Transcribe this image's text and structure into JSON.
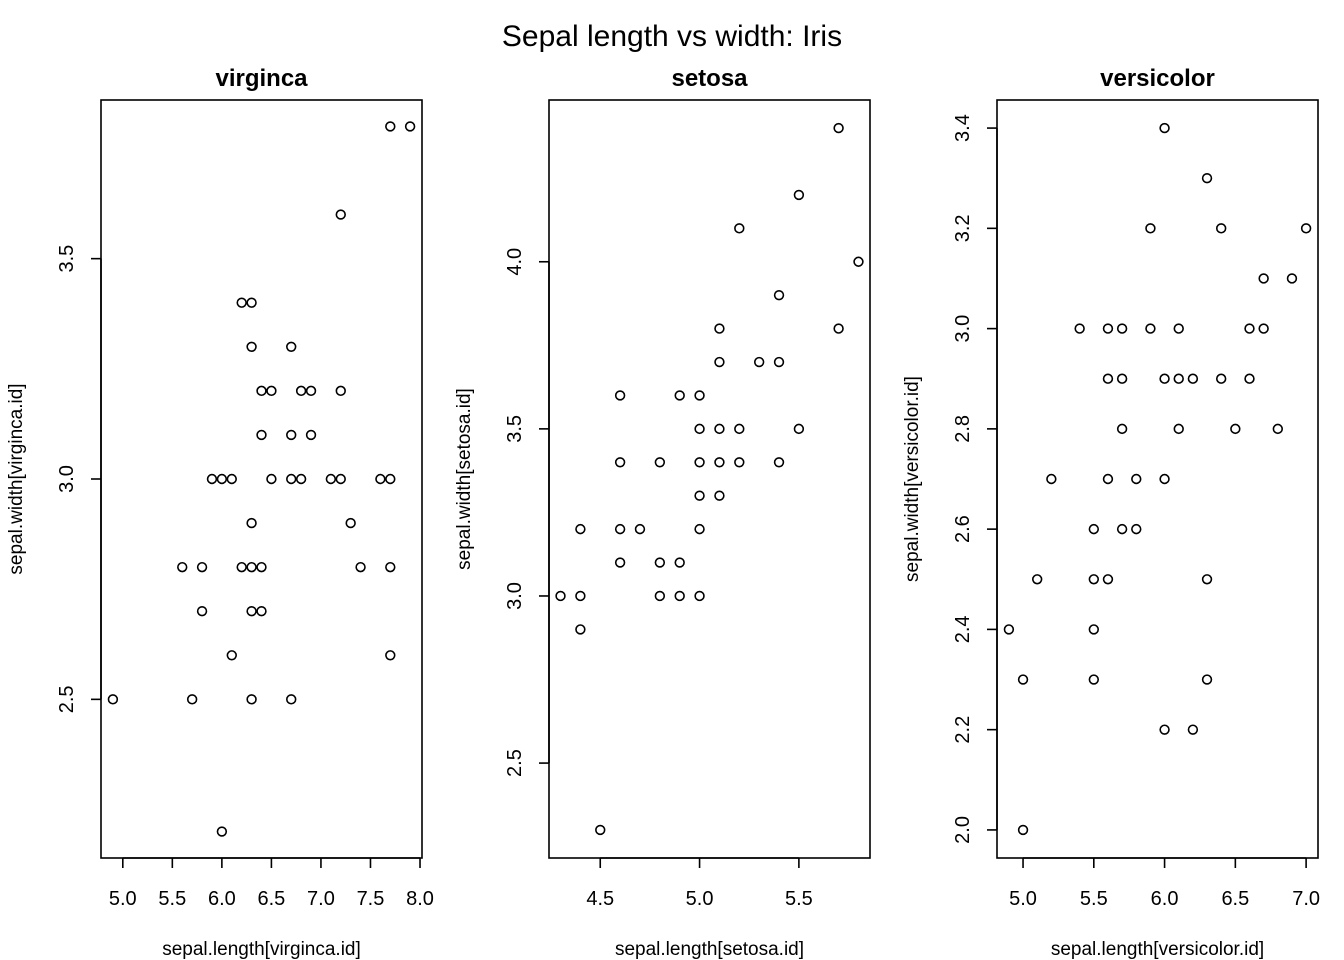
{
  "figure": {
    "supertitle": "Sepal length vs width: Iris"
  },
  "chart_data": [
    {
      "type": "scatter",
      "title": "virginca",
      "xlabel": "sepal.length[virginca.id]",
      "ylabel": "sepal.width[virginca.id]",
      "xlim": [
        4.78,
        8.02
      ],
      "ylim": [
        2.14,
        3.86
      ],
      "xticks": [
        5.0,
        5.5,
        6.0,
        6.5,
        7.0,
        7.5,
        8.0
      ],
      "yticks": [
        2.5,
        3.0,
        3.5
      ],
      "points": [
        [
          4.9,
          2.5
        ],
        [
          5.6,
          2.8
        ],
        [
          5.7,
          2.5
        ],
        [
          5.8,
          2.8
        ],
        [
          5.8,
          2.7
        ],
        [
          5.9,
          3.0
        ],
        [
          6.0,
          3.0
        ],
        [
          6.0,
          2.2
        ],
        [
          6.1,
          3.0
        ],
        [
          6.1,
          2.6
        ],
        [
          6.2,
          3.4
        ],
        [
          6.2,
          2.8
        ],
        [
          6.3,
          3.4
        ],
        [
          6.3,
          3.3
        ],
        [
          6.3,
          2.9
        ],
        [
          6.3,
          2.8
        ],
        [
          6.3,
          2.7
        ],
        [
          6.3,
          2.5
        ],
        [
          6.4,
          3.2
        ],
        [
          6.4,
          3.1
        ],
        [
          6.4,
          2.8
        ],
        [
          6.4,
          2.7
        ],
        [
          6.5,
          3.2
        ],
        [
          6.5,
          3.0
        ],
        [
          6.7,
          3.3
        ],
        [
          6.7,
          3.1
        ],
        [
          6.7,
          3.0
        ],
        [
          6.7,
          2.5
        ],
        [
          6.8,
          3.2
        ],
        [
          6.8,
          3.0
        ],
        [
          6.9,
          3.2
        ],
        [
          6.9,
          3.1
        ],
        [
          7.1,
          3.0
        ],
        [
          7.2,
          3.6
        ],
        [
          7.2,
          3.2
        ],
        [
          7.2,
          3.0
        ],
        [
          7.3,
          2.9
        ],
        [
          7.4,
          2.8
        ],
        [
          7.6,
          3.0
        ],
        [
          7.7,
          3.8
        ],
        [
          7.7,
          3.0
        ],
        [
          7.7,
          2.8
        ],
        [
          7.7,
          2.6
        ],
        [
          7.9,
          3.8
        ]
      ]
    },
    {
      "type": "scatter",
      "title": "setosa",
      "xlabel": "sepal.length[setosa.id]",
      "ylabel": "sepal.width[setosa.id]",
      "xlim": [
        4.242,
        5.858
      ],
      "ylim": [
        2.216,
        4.484
      ],
      "xticks": [
        4.5,
        5.0,
        5.5
      ],
      "yticks": [
        2.5,
        3.0,
        3.5,
        4.0
      ],
      "points": [
        [
          4.3,
          3.0
        ],
        [
          4.4,
          3.2
        ],
        [
          4.4,
          3.0
        ],
        [
          4.4,
          2.9
        ],
        [
          4.5,
          2.3
        ],
        [
          4.6,
          3.6
        ],
        [
          4.6,
          3.4
        ],
        [
          4.6,
          3.2
        ],
        [
          4.6,
          3.1
        ],
        [
          4.7,
          3.2
        ],
        [
          4.8,
          3.4
        ],
        [
          4.8,
          3.1
        ],
        [
          4.8,
          3.0
        ],
        [
          4.9,
          3.6
        ],
        [
          4.9,
          3.1
        ],
        [
          4.9,
          3.0
        ],
        [
          5.0,
          3.6
        ],
        [
          5.0,
          3.5
        ],
        [
          5.0,
          3.4
        ],
        [
          5.0,
          3.3
        ],
        [
          5.0,
          3.2
        ],
        [
          5.0,
          3.0
        ],
        [
          5.1,
          3.8
        ],
        [
          5.1,
          3.7
        ],
        [
          5.1,
          3.5
        ],
        [
          5.1,
          3.4
        ],
        [
          5.1,
          3.3
        ],
        [
          5.2,
          4.1
        ],
        [
          5.2,
          3.5
        ],
        [
          5.2,
          3.4
        ],
        [
          5.3,
          3.7
        ],
        [
          5.4,
          3.9
        ],
        [
          5.4,
          3.7
        ],
        [
          5.4,
          3.4
        ],
        [
          5.5,
          4.2
        ],
        [
          5.5,
          3.5
        ],
        [
          5.7,
          4.4
        ],
        [
          5.7,
          3.8
        ],
        [
          5.8,
          4.0
        ]
      ]
    },
    {
      "type": "scatter",
      "title": "versicolor",
      "xlabel": "sepal.length[versicolor.id]",
      "ylabel": "sepal.width[versicolor.id]",
      "xlim": [
        4.816,
        7.084
      ],
      "ylim": [
        1.944,
        3.456
      ],
      "xticks": [
        5.0,
        5.5,
        6.0,
        6.5,
        7.0
      ],
      "yticks": [
        2.0,
        2.2,
        2.4,
        2.6,
        2.8,
        3.0,
        3.2,
        3.4
      ],
      "points": [
        [
          4.9,
          2.4
        ],
        [
          5.0,
          2.3
        ],
        [
          5.0,
          2.0
        ],
        [
          5.1,
          2.5
        ],
        [
          5.2,
          2.7
        ],
        [
          5.4,
          3.0
        ],
        [
          5.5,
          2.6
        ],
        [
          5.5,
          2.5
        ],
        [
          5.5,
          2.4
        ],
        [
          5.5,
          2.3
        ],
        [
          5.6,
          3.0
        ],
        [
          5.6,
          2.9
        ],
        [
          5.6,
          2.7
        ],
        [
          5.6,
          2.5
        ],
        [
          5.7,
          3.0
        ],
        [
          5.7,
          2.9
        ],
        [
          5.7,
          2.8
        ],
        [
          5.7,
          2.6
        ],
        [
          5.8,
          2.7
        ],
        [
          5.8,
          2.6
        ],
        [
          5.9,
          3.2
        ],
        [
          5.9,
          3.0
        ],
        [
          6.0,
          3.4
        ],
        [
          6.0,
          2.9
        ],
        [
          6.0,
          2.7
        ],
        [
          6.0,
          2.2
        ],
        [
          6.1,
          3.0
        ],
        [
          6.1,
          2.9
        ],
        [
          6.1,
          2.8
        ],
        [
          6.2,
          2.9
        ],
        [
          6.2,
          2.2
        ],
        [
          6.3,
          3.3
        ],
        [
          6.3,
          2.5
        ],
        [
          6.3,
          2.3
        ],
        [
          6.4,
          3.2
        ],
        [
          6.4,
          2.9
        ],
        [
          6.5,
          2.8
        ],
        [
          6.6,
          3.0
        ],
        [
          6.6,
          2.9
        ],
        [
          6.7,
          3.1
        ],
        [
          6.7,
          3.0
        ],
        [
          6.8,
          2.8
        ],
        [
          6.9,
          3.1
        ],
        [
          7.0,
          3.2
        ]
      ]
    }
  ]
}
